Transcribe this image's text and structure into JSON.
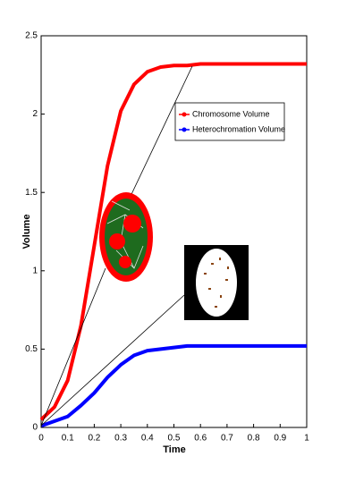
{
  "chart_data": {
    "type": "line",
    "xlabel": "Time",
    "ylabel": "Volume",
    "x": [
      0,
      0.05,
      0.1,
      0.15,
      0.2,
      0.25,
      0.3,
      0.35,
      0.4,
      0.45,
      0.5,
      0.55,
      0.6,
      0.65,
      0.7,
      0.75,
      0.8,
      0.85,
      0.9,
      0.95,
      1
    ],
    "series": [
      {
        "name": "Chromosome Volume",
        "color": "#ff0000",
        "values": [
          0.05,
          0.13,
          0.3,
          0.65,
          1.16,
          1.67,
          2.02,
          2.19,
          2.27,
          2.3,
          2.31,
          2.31,
          2.32,
          2.32,
          2.32,
          2.32,
          2.32,
          2.32,
          2.32,
          2.32,
          2.32
        ]
      },
      {
        "name": "Heterochromation Volume",
        "color": "#0000ff",
        "values": [
          0.01,
          0.04,
          0.07,
          0.14,
          0.22,
          0.32,
          0.4,
          0.46,
          0.49,
          0.5,
          0.51,
          0.52,
          0.52,
          0.52,
          0.52,
          0.52,
          0.52,
          0.52,
          0.52,
          0.52,
          0.52
        ]
      }
    ],
    "xlim": [
      0,
      1
    ],
    "xticks": [
      0,
      0.1,
      0.2,
      0.3,
      0.4,
      0.5,
      0.6,
      0.7,
      0.8,
      0.9,
      1
    ],
    "ylim": [
      0,
      2.5
    ],
    "yticks": [
      0,
      0.5,
      1,
      1.5,
      2,
      2.5
    ],
    "grid": false
  }
}
